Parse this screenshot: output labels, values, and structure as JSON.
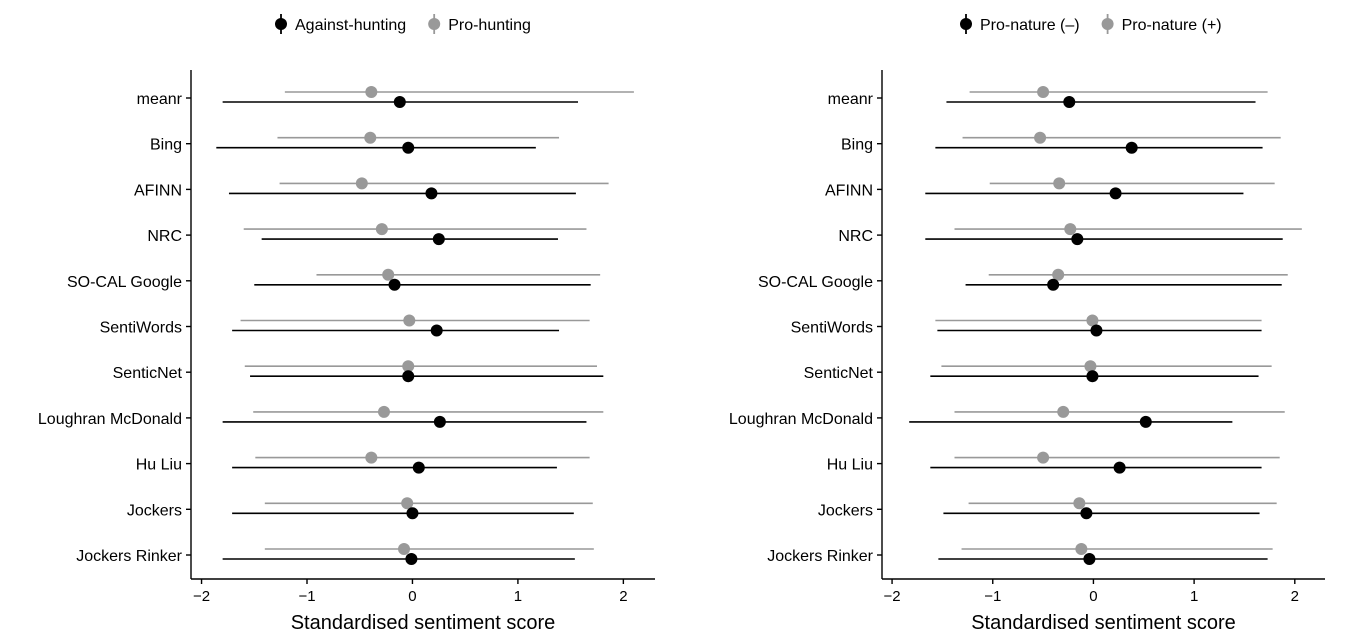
{
  "chart_data": [
    {
      "type": "dot-interval",
      "xlabel": "Standardised sentiment score",
      "xlim": [
        -2.1,
        2.3
      ],
      "xticks": [
        -2,
        -1,
        0,
        1,
        2
      ],
      "legend_position": "top",
      "categories": [
        "meanr",
        "Bing",
        "AFINN",
        "NRC",
        "SO-CAL Google",
        "SentiWords",
        "SenticNet",
        "Loughran McDonald",
        "Hu Liu",
        "Jockers",
        "Jockers Rinker"
      ],
      "series": [
        {
          "name": "Against-hunting",
          "color": "#000000",
          "points": [
            {
              "value": -0.12,
              "low": -1.8,
              "high": 1.57
            },
            {
              "value": -0.04,
              "low": -1.86,
              "high": 1.17
            },
            {
              "value": 0.18,
              "low": -1.74,
              "high": 1.55
            },
            {
              "value": 0.25,
              "low": -1.43,
              "high": 1.38
            },
            {
              "value": -0.17,
              "low": -1.5,
              "high": 1.69
            },
            {
              "value": 0.23,
              "low": -1.71,
              "high": 1.39
            },
            {
              "value": -0.04,
              "low": -1.54,
              "high": 1.81
            },
            {
              "value": 0.26,
              "low": -1.8,
              "high": 1.65
            },
            {
              "value": 0.06,
              "low": -1.71,
              "high": 1.37
            },
            {
              "value": 0.0,
              "low": -1.71,
              "high": 1.53
            },
            {
              "value": -0.01,
              "low": -1.8,
              "high": 1.54
            }
          ]
        },
        {
          "name": "Pro-hunting",
          "color": "#999999",
          "points": [
            {
              "value": -0.39,
              "low": -1.21,
              "high": 2.1
            },
            {
              "value": -0.4,
              "low": -1.28,
              "high": 1.39
            },
            {
              "value": -0.48,
              "low": -1.26,
              "high": 1.86
            },
            {
              "value": -0.29,
              "low": -1.6,
              "high": 1.65
            },
            {
              "value": -0.23,
              "low": -0.91,
              "high": 1.78
            },
            {
              "value": -0.03,
              "low": -1.63,
              "high": 1.68
            },
            {
              "value": -0.04,
              "low": -1.59,
              "high": 1.75
            },
            {
              "value": -0.27,
              "low": -1.51,
              "high": 1.81
            },
            {
              "value": -0.39,
              "low": -1.49,
              "high": 1.68
            },
            {
              "value": -0.05,
              "low": -1.4,
              "high": 1.71
            },
            {
              "value": -0.08,
              "low": -1.4,
              "high": 1.72
            }
          ]
        }
      ]
    },
    {
      "type": "dot-interval",
      "xlabel": "Standardised sentiment score",
      "xlim": [
        -2.1,
        2.3
      ],
      "xticks": [
        -2,
        -1,
        0,
        1,
        2
      ],
      "legend_position": "top",
      "categories": [
        "meanr",
        "Bing",
        "AFINN",
        "NRC",
        "SO-CAL Google",
        "SentiWords",
        "SenticNet",
        "Loughran McDonald",
        "Hu Liu",
        "Jockers",
        "Jockers Rinker"
      ],
      "series": [
        {
          "name": "Pro-nature (–)",
          "color": "#000000",
          "points": [
            {
              "value": -0.24,
              "low": -1.46,
              "high": 1.61
            },
            {
              "value": 0.38,
              "low": -1.57,
              "high": 1.68
            },
            {
              "value": 0.22,
              "low": -1.67,
              "high": 1.49
            },
            {
              "value": -0.16,
              "low": -1.67,
              "high": 1.88
            },
            {
              "value": -0.4,
              "low": -1.27,
              "high": 1.87
            },
            {
              "value": 0.03,
              "low": -1.55,
              "high": 1.67
            },
            {
              "value": -0.01,
              "low": -1.62,
              "high": 1.64
            },
            {
              "value": 0.52,
              "low": -1.83,
              "high": 1.38
            },
            {
              "value": 0.26,
              "low": -1.62,
              "high": 1.67
            },
            {
              "value": -0.07,
              "low": -1.49,
              "high": 1.65
            },
            {
              "value": -0.04,
              "low": -1.54,
              "high": 1.73
            }
          ]
        },
        {
          "name": "Pro-nature (+)",
          "color": "#999999",
          "points": [
            {
              "value": -0.5,
              "low": -1.23,
              "high": 1.73
            },
            {
              "value": -0.53,
              "low": -1.3,
              "high": 1.86
            },
            {
              "value": -0.34,
              "low": -1.03,
              "high": 1.8
            },
            {
              "value": -0.23,
              "low": -1.38,
              "high": 2.07
            },
            {
              "value": -0.35,
              "low": -1.04,
              "high": 1.93
            },
            {
              "value": -0.01,
              "low": -1.57,
              "high": 1.67
            },
            {
              "value": -0.03,
              "low": -1.51,
              "high": 1.77
            },
            {
              "value": -0.3,
              "low": -1.38,
              "high": 1.9
            },
            {
              "value": -0.5,
              "low": -1.38,
              "high": 1.85
            },
            {
              "value": -0.14,
              "low": -1.24,
              "high": 1.82
            },
            {
              "value": -0.12,
              "low": -1.31,
              "high": 1.78
            }
          ]
        }
      ]
    }
  ]
}
